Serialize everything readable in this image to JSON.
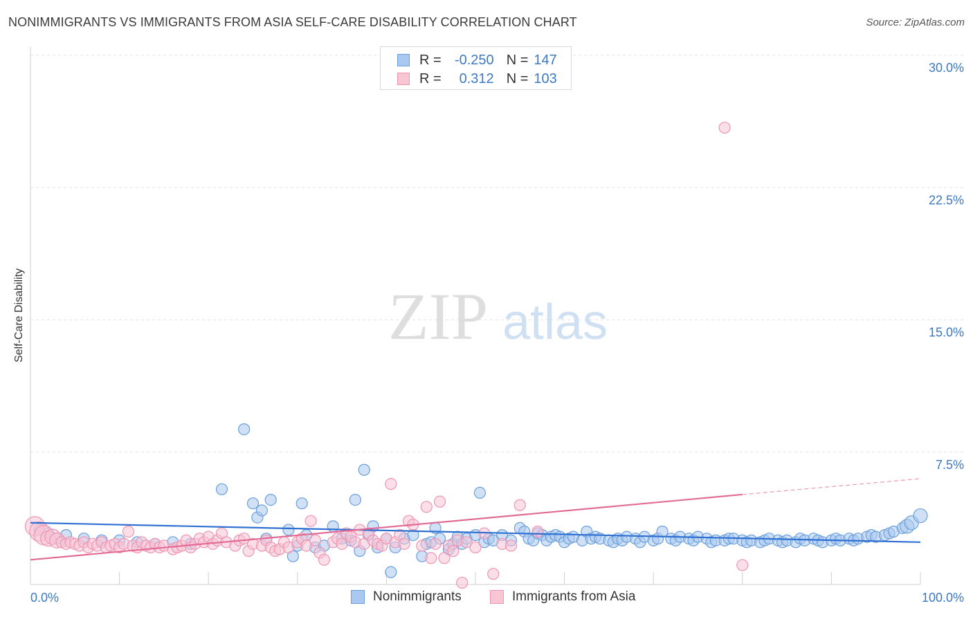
{
  "title": "NONIMMIGRANTS VS IMMIGRANTS FROM ASIA SELF-CARE DISABILITY CORRELATION CHART",
  "source": "Source: ZipAtlas.com",
  "watermark": {
    "zip": "ZIP",
    "atlas": "atlas"
  },
  "legend": {
    "r_label": "R =",
    "n_label": "N =",
    "series": [
      {
        "r": "-0.250",
        "n": "147",
        "color": "#a9c8ef",
        "border": "#6a9fdc"
      },
      {
        "r": "0.312",
        "n": "103",
        "color": "#f8c5d5",
        "border": "#ee95b1"
      }
    ]
  },
  "chart_data": {
    "type": "scatter",
    "title": "NONIMMIGRANTS VS IMMIGRANTS FROM ASIA SELF-CARE DISABILITY CORRELATION CHART",
    "xlabel": "",
    "ylabel": "Self-Care Disability",
    "xlim": [
      0,
      100
    ],
    "ylim": [
      0,
      30
    ],
    "x_tick_labels": [
      "0.0%",
      "100.0%"
    ],
    "y_ticks": [
      7.5,
      15.0,
      22.5,
      30.0
    ],
    "y_tick_labels": [
      "7.5%",
      "15.0%",
      "22.5%",
      "30.0%"
    ],
    "grid": true,
    "legend_position": "bottom-center",
    "series": [
      {
        "name": "Nonimmigrants",
        "color": "#a9c8ef",
        "stroke": "#6a9fdc",
        "trend_color": "#2f6fd1",
        "trend": {
          "x": [
            0,
            100
          ],
          "y": [
            3.5,
            2.4
          ]
        },
        "points": [
          [
            1,
            3.1
          ],
          [
            2,
            2.9
          ],
          [
            3,
            2.6
          ],
          [
            4,
            2.8
          ],
          [
            6,
            2.6
          ],
          [
            8,
            2.5
          ],
          [
            10,
            2.5
          ],
          [
            12,
            2.4
          ],
          [
            14,
            2.3
          ],
          [
            16,
            2.4
          ],
          [
            18,
            2.3
          ],
          [
            21.5,
            5.4
          ],
          [
            24,
            8.8
          ],
          [
            25,
            4.6
          ],
          [
            25.5,
            3.8
          ],
          [
            26,
            4.2
          ],
          [
            26.5,
            2.6
          ],
          [
            27,
            4.8
          ],
          [
            29,
            3.1
          ],
          [
            29.5,
            1.6
          ],
          [
            30,
            2.2
          ],
          [
            30.5,
            4.6
          ],
          [
            31,
            2.8
          ],
          [
            32,
            2.1
          ],
          [
            33,
            2.2
          ],
          [
            34,
            3.3
          ],
          [
            35,
            2.6
          ],
          [
            36,
            2.5
          ],
          [
            36.5,
            4.8
          ],
          [
            37,
            1.9
          ],
          [
            37.5,
            6.5
          ],
          [
            38,
            2.8
          ],
          [
            38.5,
            3.3
          ],
          [
            39,
            2.1
          ],
          [
            40,
            2.6
          ],
          [
            40.5,
            0.7
          ],
          [
            41,
            2.1
          ],
          [
            42,
            2.6
          ],
          [
            43,
            2.8
          ],
          [
            44,
            1.6
          ],
          [
            44.5,
            2.3
          ],
          [
            45,
            2.4
          ],
          [
            45.5,
            3.2
          ],
          [
            46,
            2.6
          ],
          [
            47,
            2.0
          ],
          [
            47.5,
            2.3
          ],
          [
            48,
            2.7
          ],
          [
            48.5,
            2.3
          ],
          [
            49,
            2.6
          ],
          [
            50,
            2.8
          ],
          [
            50.5,
            5.2
          ],
          [
            51,
            2.4
          ],
          [
            51.5,
            2.6
          ],
          [
            52,
            2.5
          ],
          [
            53,
            2.8
          ],
          [
            54,
            2.5
          ],
          [
            55,
            3.2
          ],
          [
            55.5,
            3.0
          ],
          [
            56,
            2.6
          ],
          [
            56.5,
            2.5
          ],
          [
            57,
            2.9
          ],
          [
            57.5,
            2.8
          ],
          [
            58,
            2.5
          ],
          [
            58.5,
            2.7
          ],
          [
            59,
            2.8
          ],
          [
            59.5,
            2.7
          ],
          [
            60,
            2.4
          ],
          [
            60.5,
            2.6
          ],
          [
            61,
            2.7
          ],
          [
            62,
            2.5
          ],
          [
            62.5,
            3.0
          ],
          [
            63,
            2.6
          ],
          [
            63.5,
            2.7
          ],
          [
            64,
            2.6
          ],
          [
            65,
            2.5
          ],
          [
            65.5,
            2.4
          ],
          [
            66,
            2.6
          ],
          [
            66.5,
            2.5
          ],
          [
            67,
            2.7
          ],
          [
            68,
            2.6
          ],
          [
            68.5,
            2.4
          ],
          [
            69,
            2.7
          ],
          [
            70,
            2.5
          ],
          [
            70.5,
            2.6
          ],
          [
            71,
            3.0
          ],
          [
            72,
            2.6
          ],
          [
            72.5,
            2.5
          ],
          [
            73,
            2.7
          ],
          [
            74,
            2.6
          ],
          [
            74.5,
            2.5
          ],
          [
            75,
            2.7
          ],
          [
            76,
            2.6
          ],
          [
            76.5,
            2.4
          ],
          [
            77,
            2.5
          ],
          [
            78,
            2.5
          ],
          [
            78.5,
            2.6
          ],
          [
            79,
            2.6
          ],
          [
            80,
            2.5
          ],
          [
            80.5,
            2.4
          ],
          [
            81,
            2.5
          ],
          [
            82,
            2.4
          ],
          [
            82.5,
            2.5
          ],
          [
            83,
            2.6
          ],
          [
            84,
            2.5
          ],
          [
            84.5,
            2.4
          ],
          [
            85,
            2.5
          ],
          [
            86,
            2.4
          ],
          [
            86.5,
            2.6
          ],
          [
            87,
            2.5
          ],
          [
            88,
            2.6
          ],
          [
            88.5,
            2.5
          ],
          [
            89,
            2.4
          ],
          [
            90,
            2.5
          ],
          [
            90.5,
            2.6
          ],
          [
            91,
            2.5
          ],
          [
            92,
            2.6
          ],
          [
            92.5,
            2.5
          ],
          [
            93,
            2.6
          ],
          [
            94,
            2.7
          ],
          [
            94.5,
            2.8
          ],
          [
            95,
            2.7
          ],
          [
            96,
            2.8
          ],
          [
            96.5,
            2.9
          ],
          [
            97,
            3.0
          ],
          [
            98,
            3.2
          ],
          [
            98.5,
            3.3
          ],
          [
            99,
            3.5
          ],
          [
            100,
            3.9
          ]
        ]
      },
      {
        "name": "Immigrants from Asia",
        "color": "#f8c5d5",
        "stroke": "#ee95b1",
        "trend_color": "#e26b96",
        "trend": {
          "x": [
            0,
            80
          ],
          "y": [
            1.4,
            5.1
          ]
        },
        "trend_dashed": {
          "x": [
            80,
            100
          ],
          "y": [
            5.1,
            6.0
          ]
        },
        "points": [
          [
            0.5,
            3.3
          ],
          [
            1,
            3.0
          ],
          [
            1.5,
            2.8
          ],
          [
            2,
            2.6
          ],
          [
            2.5,
            2.7
          ],
          [
            3,
            2.5
          ],
          [
            3.5,
            2.4
          ],
          [
            4,
            2.3
          ],
          [
            4.5,
            2.4
          ],
          [
            5,
            2.3
          ],
          [
            5.5,
            2.2
          ],
          [
            6,
            2.4
          ],
          [
            6.5,
            2.1
          ],
          [
            7,
            2.3
          ],
          [
            7.5,
            2.2
          ],
          [
            8,
            2.4
          ],
          [
            8.5,
            2.1
          ],
          [
            9,
            2.2
          ],
          [
            9.5,
            2.3
          ],
          [
            10,
            2.1
          ],
          [
            10.5,
            2.3
          ],
          [
            11,
            3.0
          ],
          [
            11.5,
            2.2
          ],
          [
            12,
            2.1
          ],
          [
            12.5,
            2.4
          ],
          [
            13,
            2.2
          ],
          [
            13.5,
            2.1
          ],
          [
            14,
            2.3
          ],
          [
            14.5,
            2.1
          ],
          [
            15,
            2.2
          ],
          [
            16,
            2.0
          ],
          [
            16.5,
            2.1
          ],
          [
            17,
            2.2
          ],
          [
            17.5,
            2.5
          ],
          [
            18,
            2.1
          ],
          [
            18.5,
            2.3
          ],
          [
            19,
            2.6
          ],
          [
            19.5,
            2.4
          ],
          [
            20,
            2.7
          ],
          [
            20.5,
            2.3
          ],
          [
            21,
            2.5
          ],
          [
            21.5,
            2.9
          ],
          [
            22,
            2.4
          ],
          [
            23,
            2.2
          ],
          [
            23.5,
            2.5
          ],
          [
            24,
            2.6
          ],
          [
            24.5,
            1.9
          ],
          [
            25,
            2.3
          ],
          [
            26,
            2.2
          ],
          [
            26.5,
            2.5
          ],
          [
            27,
            2.1
          ],
          [
            27.5,
            1.9
          ],
          [
            28,
            2.0
          ],
          [
            28.5,
            2.4
          ],
          [
            29,
            2.1
          ],
          [
            30,
            2.4
          ],
          [
            30.5,
            2.6
          ],
          [
            31,
            2.2
          ],
          [
            31.5,
            3.6
          ],
          [
            32,
            2.5
          ],
          [
            32.5,
            1.8
          ],
          [
            33,
            1.4
          ],
          [
            34,
            2.4
          ],
          [
            34.5,
            2.6
          ],
          [
            35,
            2.3
          ],
          [
            35.5,
            2.9
          ],
          [
            36,
            2.7
          ],
          [
            36.5,
            2.4
          ],
          [
            37,
            3.1
          ],
          [
            37.5,
            2.3
          ],
          [
            38,
            2.9
          ],
          [
            38.5,
            2.5
          ],
          [
            39,
            2.3
          ],
          [
            39.5,
            2.2
          ],
          [
            40,
            2.6
          ],
          [
            40.5,
            5.7
          ],
          [
            41,
            2.4
          ],
          [
            41.5,
            2.8
          ],
          [
            42,
            2.3
          ],
          [
            42.5,
            3.6
          ],
          [
            43,
            3.4
          ],
          [
            44,
            2.2
          ],
          [
            44.5,
            4.4
          ],
          [
            45,
            1.5
          ],
          [
            45.5,
            2.3
          ],
          [
            46,
            4.7
          ],
          [
            46.5,
            1.5
          ],
          [
            47,
            2.2
          ],
          [
            47.5,
            1.9
          ],
          [
            48,
            2.5
          ],
          [
            48.5,
            0.1
          ],
          [
            49,
            2.4
          ],
          [
            50,
            2.1
          ],
          [
            51,
            2.9
          ],
          [
            52,
            0.6
          ],
          [
            53,
            2.3
          ],
          [
            54,
            2.2
          ],
          [
            55,
            4.5
          ],
          [
            57,
            3.0
          ],
          [
            78,
            25.9
          ],
          [
            80,
            1.1
          ]
        ]
      }
    ]
  }
}
